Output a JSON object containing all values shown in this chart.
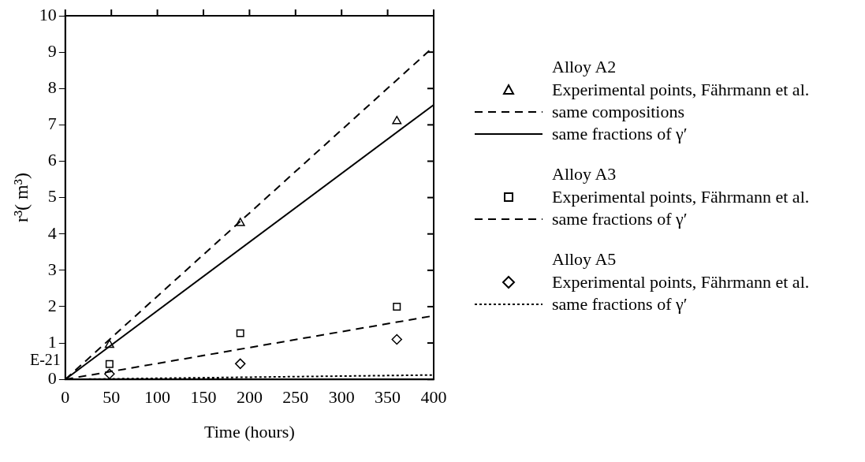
{
  "chart_data": {
    "type": "line",
    "xlabel": "Time (hours)",
    "ylabel": "r³( m³)",
    "annotations": [
      "E-21",
      "Alloy A2",
      "Alloy A3",
      "Alloy A5"
    ],
    "xlim": [
      0,
      400
    ],
    "xticks": [
      0,
      50,
      100,
      150,
      200,
      250,
      300,
      350,
      400
    ],
    "ylim": [
      0,
      10
    ],
    "yticks": [
      0,
      1,
      2,
      3,
      4,
      5,
      6,
      7,
      8,
      9,
      10
    ],
    "grid": false,
    "legend": "right",
    "series": [
      {
        "name": "Experimental points, Fährmann et al.",
        "type": "scatter",
        "marker": "triangle",
        "color": "#000000",
        "x": [
          48,
          190,
          360
        ],
        "values": [
          0.95,
          4.3,
          7.1
        ]
      },
      {
        "name": "same compositions",
        "line_style": "dashed",
        "marker": "none",
        "color": "#000000",
        "x": [
          0,
          400
        ],
        "values": [
          0,
          9.15
        ]
      },
      {
        "name": "same fractions of γ′",
        "line_style": "solid",
        "marker": "none",
        "color": "#000000",
        "x": [
          0,
          400
        ],
        "values": [
          0,
          7.55
        ]
      },
      {
        "name": "Experimental points, Fährmann et al.",
        "type": "scatter",
        "marker": "square",
        "color": "#000000",
        "x": [
          48,
          190,
          360
        ],
        "values": [
          0.42,
          1.27,
          2.0
        ]
      },
      {
        "name": "same fractions of γ′",
        "line_style": "dashed",
        "marker": "none",
        "color": "#000000",
        "x": [
          0,
          400
        ],
        "values": [
          0,
          1.75
        ]
      },
      {
        "name": "Experimental points, Fährmann et al.",
        "type": "scatter",
        "marker": "diamond",
        "color": "#000000",
        "x": [
          48,
          190,
          360
        ],
        "values": [
          0.15,
          0.43,
          1.1
        ]
      },
      {
        "name": "same fractions of γ′",
        "line_style": "dotted",
        "marker": "none",
        "color": "#000000",
        "x": [
          0,
          400
        ],
        "values": [
          0,
          0.12
        ]
      }
    ]
  }
}
